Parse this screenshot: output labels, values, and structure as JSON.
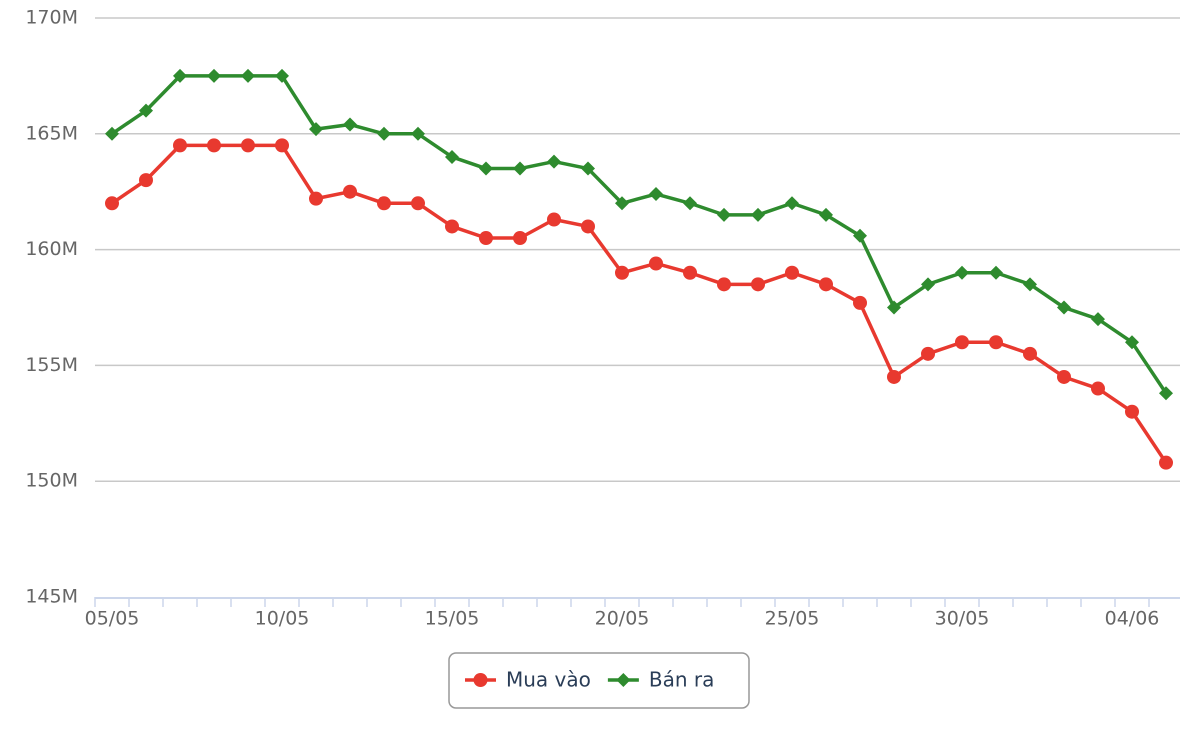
{
  "chart_data": {
    "type": "line",
    "categories": [
      "05/05",
      null,
      null,
      null,
      null,
      "10/05",
      null,
      null,
      null,
      null,
      "15/05",
      null,
      null,
      null,
      null,
      "20/05",
      null,
      null,
      null,
      null,
      "25/05",
      null,
      null,
      null,
      null,
      "30/05",
      null,
      null,
      null,
      null,
      "04/06",
      null
    ],
    "series": [
      {
        "name": "Mua vào",
        "color": "#e8392f",
        "marker": "circle",
        "values": [
          162.0,
          163.0,
          164.5,
          164.5,
          164.5,
          164.5,
          162.2,
          162.5,
          162.0,
          162.0,
          161.0,
          160.5,
          160.5,
          161.3,
          161.0,
          159.0,
          159.4,
          159.0,
          158.5,
          158.5,
          159.0,
          158.5,
          157.7,
          154.5,
          155.5,
          156.0,
          156.0,
          155.5,
          154.5,
          154.0,
          153.0,
          150.8
        ]
      },
      {
        "name": "Bán ra",
        "color": "#2e8b2e",
        "marker": "diamond",
        "values": [
          165.0,
          166.0,
          167.5,
          167.5,
          167.5,
          167.5,
          165.2,
          165.4,
          165.0,
          165.0,
          164.0,
          163.5,
          163.5,
          163.8,
          163.5,
          162.0,
          162.4,
          162.0,
          161.5,
          161.5,
          162.0,
          161.5,
          160.6,
          157.5,
          158.5,
          159.0,
          159.0,
          158.5,
          157.5,
          157.0,
          156.0,
          153.8
        ]
      }
    ],
    "ylim": [
      145,
      170
    ],
    "yticks": [
      {
        "value": 145,
        "label": "145M"
      },
      {
        "value": 150,
        "label": "150M"
      },
      {
        "value": 155,
        "label": "155M"
      },
      {
        "value": 160,
        "label": "160M"
      },
      {
        "value": 165,
        "label": "165M"
      },
      {
        "value": 170,
        "label": "170M"
      }
    ],
    "grid": true,
    "legend": "bottom"
  }
}
